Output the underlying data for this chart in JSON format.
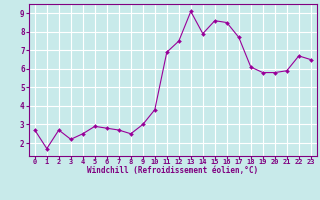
{
  "x": [
    0,
    1,
    2,
    3,
    4,
    5,
    6,
    7,
    8,
    9,
    10,
    11,
    12,
    13,
    14,
    15,
    16,
    17,
    18,
    19,
    20,
    21,
    22,
    23
  ],
  "y": [
    2.7,
    1.7,
    2.7,
    2.2,
    2.5,
    2.9,
    2.8,
    2.7,
    2.5,
    3.0,
    3.8,
    6.9,
    7.5,
    9.1,
    7.9,
    8.6,
    8.5,
    7.7,
    6.1,
    5.8,
    5.8,
    5.9,
    6.7,
    6.5
  ],
  "line_color": "#990099",
  "marker": "D",
  "marker_size": 2,
  "bg_color": "#c8eaea",
  "grid_color": "#ffffff",
  "xlabel": "Windchill (Refroidissement éolien,°C)",
  "xlabel_color": "#800080",
  "tick_color": "#800080",
  "ylim": [
    1.3,
    9.5
  ],
  "xlim": [
    -0.5,
    23.5
  ],
  "yticks": [
    2,
    3,
    4,
    5,
    6,
    7,
    8,
    9
  ],
  "xticks": [
    0,
    1,
    2,
    3,
    4,
    5,
    6,
    7,
    8,
    9,
    10,
    11,
    12,
    13,
    14,
    15,
    16,
    17,
    18,
    19,
    20,
    21,
    22,
    23
  ]
}
